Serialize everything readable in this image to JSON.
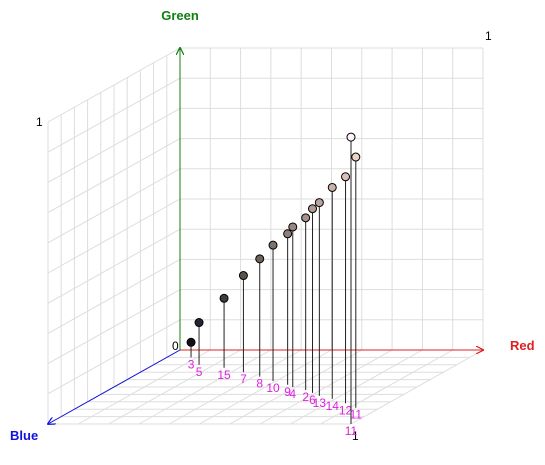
{
  "chart_data": {
    "type": "scatter3d",
    "x_label": "Red",
    "y_label": "Green",
    "z_label": "Blue",
    "x_color": "#e02020",
    "y_color": "#108010",
    "z_color": "#1010e0",
    "xlim": [
      0,
      1
    ],
    "ylim": [
      0,
      1
    ],
    "zlim": [
      0,
      1
    ],
    "grid": true,
    "labels": [
      "3",
      "5",
      "15",
      "7",
      "8",
      "10",
      "9",
      "4",
      "2",
      "6",
      "13",
      "14",
      "12",
      "11",
      "11"
    ],
    "x": [
      0.08,
      0.15,
      0.25,
      0.34,
      0.42,
      0.49,
      0.56,
      0.59,
      0.65,
      0.69,
      0.73,
      0.79,
      0.86,
      0.92,
      1.0
    ],
    "y": [
      0.05,
      0.14,
      0.23,
      0.32,
      0.39,
      0.45,
      0.5,
      0.53,
      0.57,
      0.61,
      0.64,
      0.7,
      0.75,
      0.83,
      0.95
    ],
    "z": [
      0.1,
      0.2,
      0.24,
      0.3,
      0.36,
      0.42,
      0.47,
      0.5,
      0.54,
      0.58,
      0.62,
      0.66,
      0.72,
      0.78,
      1.0
    ],
    "label_color": "#e020e0"
  }
}
